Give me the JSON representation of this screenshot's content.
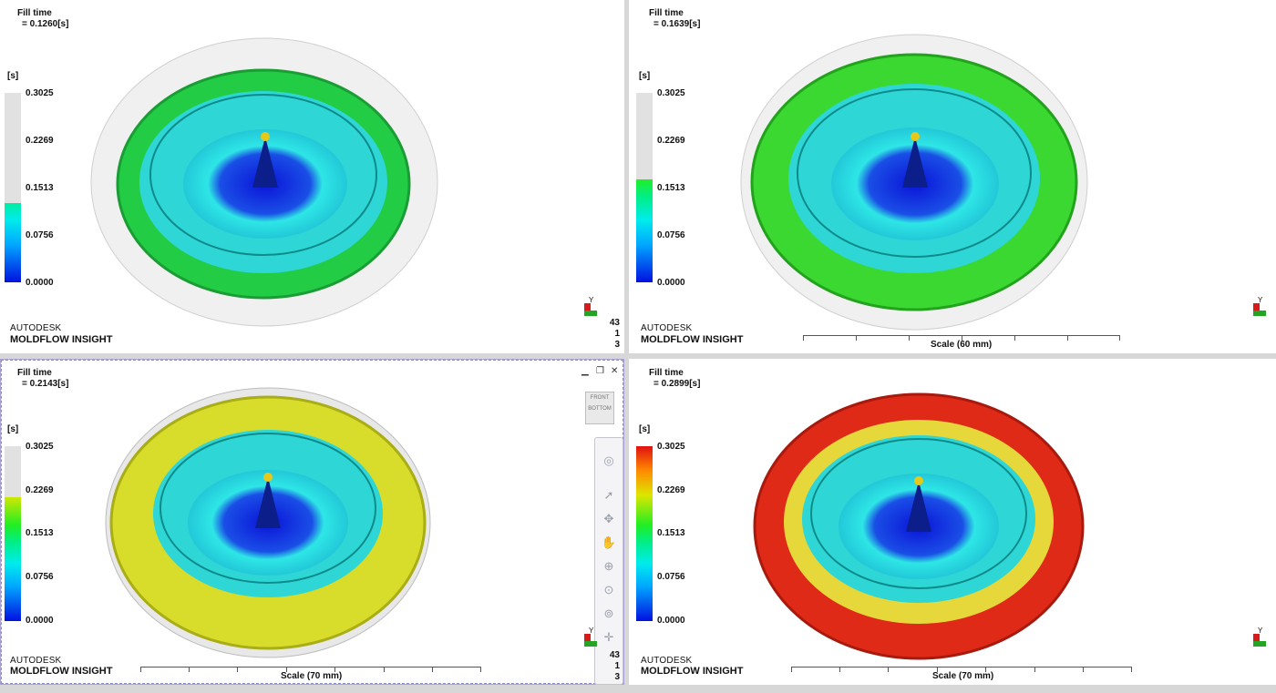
{
  "app": {
    "brand_line1": "AUTODESK",
    "brand_line2": "MOLDFLOW INSIGHT"
  },
  "viewports": [
    {
      "title": "Fill time",
      "value": "= 0.1260[s]",
      "unit": "[s]",
      "legend_ticks": [
        "0.3025",
        "0.2269",
        "0.1513",
        "0.0756",
        "0.0000"
      ],
      "fill_fraction": 0.417,
      "band_color": "#22cc44",
      "scale_label": "",
      "coords": [
        "43",
        "1",
        "3"
      ]
    },
    {
      "title": "Fill time",
      "value": "= 0.1639[s]",
      "unit": "[s]",
      "legend_ticks": [
        "0.3025",
        "0.2269",
        "0.1513",
        "0.0756",
        "0.0000"
      ],
      "fill_fraction": 0.542,
      "band_color": "#3ad830",
      "scale_label": "Scale (60 mm)",
      "coords": []
    },
    {
      "title": "Fill time",
      "value": "= 0.2143[s]",
      "unit": "[s]",
      "legend_ticks": [
        "0.3025",
        "0.2269",
        "0.1513",
        "0.0756",
        "0.0000"
      ],
      "fill_fraction": 0.708,
      "band_color": "#d8dc2a",
      "scale_label": "Scale (70 mm)",
      "coords": [
        "43",
        "1",
        "3"
      ]
    },
    {
      "title": "Fill time",
      "value": "= 0.2899[s]",
      "unit": "[s]",
      "legend_ticks": [
        "0.3025",
        "0.2269",
        "0.1513",
        "0.0756",
        "0.0000"
      ],
      "fill_fraction": 1.0,
      "band_color": "#e02a18",
      "scale_label": "Scale (70 mm)",
      "coords": []
    }
  ],
  "navigation": {
    "viewcube_top": "FRONT",
    "viewcube_bottom": "BOTTOM",
    "tools": [
      "steering-wheel",
      "select",
      "orbit",
      "pan",
      "zoom-in",
      "zoom",
      "zoom-fit",
      "center"
    ]
  },
  "colors": {
    "legend_empty": "#e1e1e1",
    "accent_dashed": "#8e88cc"
  }
}
